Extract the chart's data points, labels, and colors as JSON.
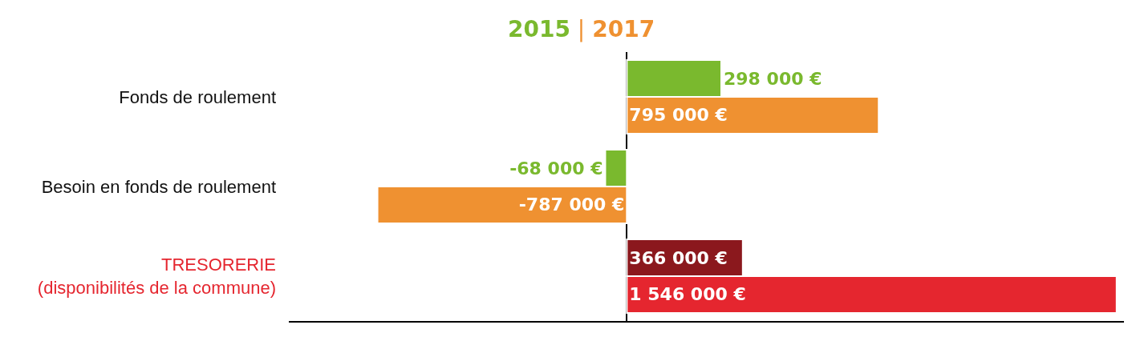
{
  "chart_data": {
    "type": "bar",
    "orientation": "horizontal",
    "annotations": [
      "|"
    ],
    "categories": [
      "Fonds de roulement",
      "Besoin en fonds de roulement",
      "TRESORERIE\n(disponibilités de la commune)"
    ],
    "series": [
      {
        "name": "2015",
        "colors": [
          "#7ab92e",
          "#7ab92e",
          "#8b181d"
        ],
        "values": [
          298000,
          -68000,
          366000
        ],
        "value_labels": [
          "298 000 €",
          "-68 000 €",
          "366 000 €"
        ]
      },
      {
        "name": "2017",
        "colors": [
          "#ef9131",
          "#ef9131",
          "#e5262f"
        ],
        "values": [
          795000,
          -787000,
          1546000
        ],
        "value_labels": [
          "795 000 €",
          "-787 000 €",
          "1 546 000 €"
        ]
      }
    ]
  }
}
